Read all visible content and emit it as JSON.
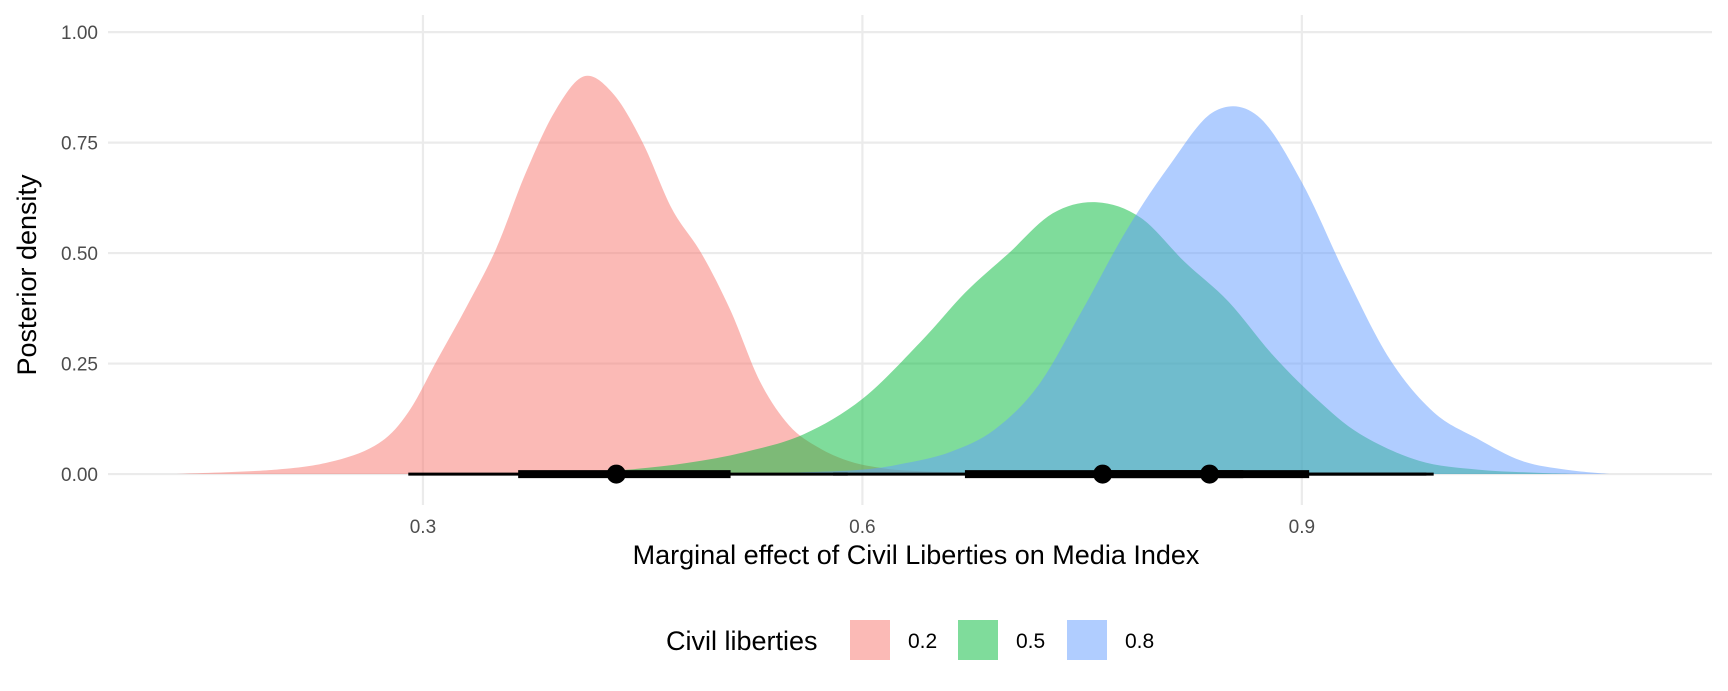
{
  "chart_data": {
    "type": "area",
    "subtype": "density with interval summary",
    "xlabel": "Marginal effect of Civil Liberties on Media Index",
    "ylabel": "Posterior density",
    "xlim": [
      0.085,
      1.18
    ],
    "ylim": [
      -0.07,
      1.05
    ],
    "x_ticks": [
      0.3,
      0.6,
      0.9
    ],
    "x_tick_labels": [
      "0.3",
      "0.6",
      "0.9"
    ],
    "y_ticks": [
      0.0,
      0.25,
      0.5,
      0.75,
      1.0
    ],
    "y_tick_labels": [
      "0.00",
      "0.25",
      "0.50",
      "0.75",
      "1.00"
    ],
    "grid": true,
    "legend": {
      "title": "Civil liberties",
      "position": "bottom"
    },
    "series": [
      {
        "name": "0.2",
        "color": "#F8766D",
        "x": [
          0.13,
          0.2,
          0.24,
          0.27,
          0.29,
          0.31,
          0.33,
          0.35,
          0.37,
          0.39,
          0.41,
          0.43,
          0.45,
          0.47,
          0.49,
          0.51,
          0.53,
          0.55,
          0.57,
          0.59,
          0.61,
          0.63,
          0.66,
          0.7,
          0.74,
          0.78
        ],
        "density": [
          0.0,
          0.01,
          0.03,
          0.07,
          0.14,
          0.26,
          0.38,
          0.51,
          0.68,
          0.82,
          0.9,
          0.86,
          0.75,
          0.6,
          0.5,
          0.37,
          0.21,
          0.11,
          0.06,
          0.03,
          0.015,
          0.008,
          0.004,
          0.002,
          0.001,
          0.0
        ],
        "point": 0.432,
        "interval_inner": [
          0.365,
          0.51
        ],
        "interval_outer": [
          0.29,
          0.59
        ]
      },
      {
        "name": "0.5",
        "color": "#00BA38",
        "x": [
          0.36,
          0.4,
          0.44,
          0.48,
          0.52,
          0.56,
          0.6,
          0.64,
          0.67,
          0.7,
          0.73,
          0.76,
          0.79,
          0.82,
          0.85,
          0.88,
          0.91,
          0.94,
          0.98,
          1.02,
          1.06,
          1.09
        ],
        "density": [
          0.0,
          0.003,
          0.01,
          0.025,
          0.05,
          0.09,
          0.17,
          0.3,
          0.41,
          0.5,
          0.59,
          0.615,
          0.58,
          0.48,
          0.39,
          0.27,
          0.17,
          0.09,
          0.03,
          0.01,
          0.003,
          0.0
        ],
        "point": 0.764,
        "interval_inner": [
          0.67,
          0.86
        ],
        "interval_outer": [
          0.58,
          0.99
        ]
      },
      {
        "name": "0.8",
        "color": "#619CFF",
        "x": [
          0.5,
          0.55,
          0.6,
          0.63,
          0.66,
          0.69,
          0.72,
          0.75,
          0.78,
          0.81,
          0.84,
          0.87,
          0.9,
          0.93,
          0.96,
          0.99,
          1.02,
          1.05,
          1.08,
          1.11
        ],
        "density": [
          0.0,
          0.003,
          0.01,
          0.025,
          0.05,
          0.1,
          0.2,
          0.37,
          0.55,
          0.7,
          0.82,
          0.81,
          0.66,
          0.45,
          0.26,
          0.14,
          0.08,
          0.03,
          0.01,
          0.0
        ],
        "point": 0.837,
        "interval_inner": [
          0.765,
          0.905
        ],
        "interval_outer": [
          0.67,
          0.985
        ]
      }
    ]
  }
}
